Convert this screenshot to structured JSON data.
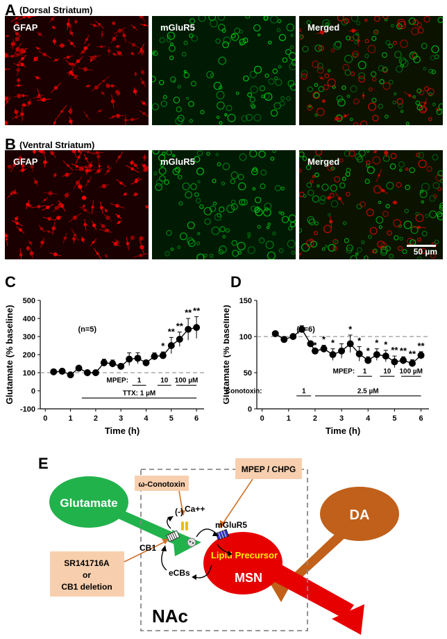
{
  "panelA": {
    "letter": "A",
    "subtitle": "(Dorsal Striatum)",
    "labels": [
      "GFAP",
      "mGluR5",
      "Merged"
    ]
  },
  "panelB": {
    "letter": "B",
    "subtitle": "(Ventral Striatum)",
    "labels": [
      "GFAP",
      "mGluR5",
      "Merged"
    ],
    "scale": "50 µm"
  },
  "panelC": {
    "letter": "C"
  },
  "panelD": {
    "letter": "D"
  },
  "panelE": {
    "letter": "E"
  },
  "colors": {
    "red": "#e60000",
    "green": "#22b24c",
    "orange": "#c0601a",
    "tan": "#f7cfae",
    "accent": "#ffee00"
  },
  "chart_data": [
    {
      "type": "line",
      "xlabel": "Time (h)",
      "ylabel": "Glutamate (% baseline)",
      "xlim": [
        -0.2,
        6.3
      ],
      "ylim": [
        -100,
        500
      ],
      "xticks": [
        0,
        1,
        2,
        3,
        4,
        5,
        6
      ],
      "yticks": [
        -100,
        0,
        100,
        200,
        300,
        400,
        500
      ],
      "baseline": 100,
      "annotation": "(n=5)",
      "x": [
        0.33,
        0.67,
        1.0,
        1.33,
        1.67,
        2.0,
        2.33,
        2.67,
        3.0,
        3.33,
        3.67,
        4.0,
        4.33,
        4.67,
        5.0,
        5.33,
        5.67,
        6.0
      ],
      "y": [
        105,
        108,
        88,
        125,
        100,
        100,
        155,
        150,
        135,
        175,
        180,
        155,
        190,
        195,
        250,
        285,
        340,
        350
      ],
      "err": [
        0,
        0,
        0,
        12,
        0,
        0,
        20,
        20,
        15,
        35,
        30,
        10,
        20,
        20,
        45,
        40,
        60,
        60
      ],
      "sig": [
        "",
        "",
        "",
        "",
        "",
        "",
        "",
        "",
        "",
        "",
        "",
        "",
        "",
        "*",
        "**",
        "**",
        "**",
        "**"
      ],
      "bars": [
        {
          "label": "MPEP:",
          "x": 3.3,
          "y": 30
        },
        {
          "label": "1",
          "x1": 3.45,
          "x2": 4.0,
          "y": 30
        },
        {
          "label": "10",
          "x1": 4.45,
          "x2": 5.0,
          "y": 30
        },
        {
          "label": "100 µM",
          "x1": 5.2,
          "x2": 6.0,
          "y": 30
        },
        {
          "label": "TTX: 1 µM",
          "x1": 1.45,
          "x2": 6.0,
          "y": -40
        }
      ]
    },
    {
      "type": "line",
      "xlabel": "Time (h)",
      "ylabel": "Glutamate (% baseline)",
      "xlim": [
        -0.2,
        6.3
      ],
      "ylim": [
        0,
        150
      ],
      "xticks": [
        0,
        1,
        2,
        3,
        4,
        5,
        6
      ],
      "yticks": [
        0,
        50,
        100,
        150
      ],
      "baseline": 100,
      "annotation": "(n=6)",
      "x": [
        0.5,
        0.83,
        1.17,
        1.5,
        1.83,
        2.0,
        2.33,
        2.67,
        3.0,
        3.33,
        3.67,
        4.0,
        4.33,
        4.67,
        5.0,
        5.33,
        5.67,
        6.0
      ],
      "y": [
        104,
        96,
        100,
        110,
        90,
        80,
        83,
        75,
        80,
        90,
        76,
        67,
        75,
        73,
        65,
        67,
        63,
        74
      ],
      "err": [
        0,
        0,
        0,
        5,
        0,
        0,
        5,
        8,
        10,
        12,
        10,
        5,
        8,
        8,
        8,
        5,
        5,
        5
      ],
      "sig": [
        "",
        "",
        "",
        "",
        "",
        "*",
        "*",
        "*",
        "",
        "*",
        "*",
        "*",
        "*",
        "*",
        "**",
        "**",
        "**",
        "**"
      ],
      "bars": [
        {
          "label": "MPEP:",
          "x": 3.5,
          "y": 45
        },
        {
          "label": "1",
          "x1": 3.6,
          "x2": 4.15,
          "y": 45
        },
        {
          "label": "10",
          "x1": 4.45,
          "x2": 5.0,
          "y": 45
        },
        {
          "label": "100 µM",
          "x1": 5.25,
          "x2": 6.0,
          "y": 45
        },
        {
          "label": "Conotoxin:",
          "x": 0.0,
          "y": 18
        },
        {
          "label": "1",
          "x1": 1.3,
          "x2": 1.85,
          "y": 18
        },
        {
          "label": "2.5 µM",
          "x1": 2.0,
          "x2": 6.0,
          "y": 18
        }
      ]
    }
  ],
  "diagram": {
    "glutamate": "Glutamate",
    "da": "DA",
    "conotoxin": "ω-Conotoxin",
    "mpep": "MPEP / CHPG",
    "minus": "(-)",
    "ca": "Ca++",
    "mglur5": "mGluR5",
    "cb1": "CB1",
    "lipid": "Lipid Precursor",
    "ecbs": "eCBs",
    "msn": "MSN",
    "nac": "NAc",
    "sr": [
      "SR141716A",
      "or",
      "CB1 deletion"
    ]
  }
}
